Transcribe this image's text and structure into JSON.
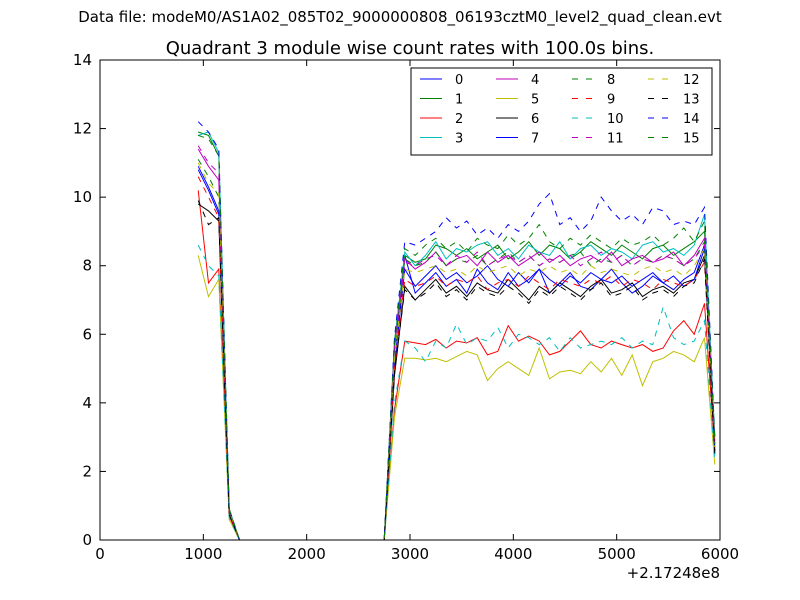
{
  "page_title": "Data file: modeM0/AS1A02_085T02_9000000808_06193cztM0_level2_quad_clean.evt",
  "chart_data": {
    "type": "line",
    "title": "Quadrant 3 module wise count rates with 100.0s bins.",
    "xlabel": "",
    "ylabel": "",
    "x_offset_label": "+2.17248e8",
    "xlim": [
      0,
      6000
    ],
    "ylim": [
      0,
      14
    ],
    "xticks": [
      0,
      1000,
      2000,
      3000,
      4000,
      5000,
      6000
    ],
    "yticks": [
      0,
      2,
      4,
      6,
      8,
      10,
      12,
      14
    ],
    "grid": false,
    "legend": "top-right",
    "x": [
      950,
      1050,
      1150,
      1250,
      1350,
      1450,
      2650,
      2750,
      2850,
      2950,
      3050,
      3150,
      3250,
      3350,
      3450,
      3550,
      3650,
      3750,
      3850,
      3950,
      4050,
      4150,
      4250,
      4350,
      4450,
      4550,
      4650,
      4750,
      4850,
      4950,
      5050,
      5150,
      5250,
      5350,
      5450,
      5550,
      5650,
      5750,
      5850,
      5950
    ],
    "series": [
      {
        "name": "0",
        "color": "#0000ff",
        "dash": "solid",
        "values": [
          10.8,
          10.2,
          9.5,
          0.8,
          0,
          0,
          0,
          0,
          5.0,
          8.3,
          7.2,
          7.5,
          7.8,
          7.4,
          7.6,
          7.2,
          7.9,
          7.5,
          7.3,
          7.8,
          7.4,
          7.6,
          7.9,
          7.2,
          7.5,
          7.8,
          7.4,
          7.3,
          7.6,
          7.9,
          7.5,
          7.2,
          7.4,
          7.7,
          7.5,
          7.3,
          7.6,
          7.8,
          8.6,
          2.5
        ]
      },
      {
        "name": "1",
        "color": "#008000",
        "dash": "solid",
        "values": [
          11.9,
          11.8,
          11.2,
          0.9,
          0,
          0,
          0,
          0,
          5.8,
          8.3,
          8.1,
          8.2,
          8.6,
          8.5,
          8.3,
          8.5,
          8.2,
          8.4,
          8.6,
          8.2,
          8.4,
          8.7,
          8.3,
          8.6,
          8.5,
          8.2,
          8.4,
          8.7,
          8.5,
          8.3,
          8.6,
          8.4,
          8.2,
          8.5,
          8.6,
          8.3,
          8.5,
          8.7,
          9.0,
          3.0
        ]
      },
      {
        "name": "2",
        "color": "#ff0000",
        "dash": "solid",
        "values": [
          10.2,
          7.5,
          7.9,
          0.7,
          0,
          0,
          0,
          0,
          3.8,
          5.8,
          5.75,
          5.7,
          5.85,
          5.6,
          5.8,
          5.75,
          5.9,
          5.4,
          5.5,
          6.25,
          5.8,
          5.95,
          5.8,
          5.4,
          5.5,
          5.8,
          6.1,
          5.7,
          5.6,
          5.8,
          5.7,
          5.6,
          5.7,
          5.5,
          5.6,
          6.1,
          6.4,
          6.0,
          6.9,
          2.6
        ]
      },
      {
        "name": "3",
        "color": "#00bfbf",
        "dash": "solid",
        "values": [
          11.8,
          11.9,
          11.3,
          0.9,
          0,
          0,
          0,
          0,
          5.7,
          8.4,
          8.0,
          8.3,
          8.7,
          8.2,
          8.5,
          8.4,
          8.6,
          8.7,
          8.3,
          8.5,
          8.2,
          8.6,
          8.4,
          8.3,
          8.7,
          8.2,
          8.5,
          8.6,
          8.3,
          8.5,
          8.4,
          8.2,
          8.6,
          8.7,
          8.4,
          8.5,
          8.3,
          8.6,
          9.5,
          2.9
        ]
      },
      {
        "name": "4",
        "color": "#bf00bf",
        "dash": "solid",
        "values": [
          11.4,
          10.9,
          10.5,
          0.85,
          0,
          0,
          0,
          0,
          5.6,
          8.2,
          7.9,
          8.1,
          8.4,
          8.0,
          8.2,
          8.3,
          8.0,
          8.4,
          8.1,
          8.3,
          8.0,
          8.2,
          8.4,
          8.1,
          8.3,
          8.0,
          8.2,
          8.3,
          8.1,
          8.4,
          8.0,
          8.2,
          8.3,
          8.1,
          8.2,
          8.4,
          8.0,
          8.3,
          8.8,
          2.8
        ]
      },
      {
        "name": "5",
        "color": "#bfbf00",
        "dash": "solid",
        "values": [
          8.3,
          7.1,
          7.6,
          0.6,
          0,
          0,
          0,
          0,
          3.6,
          5.3,
          5.3,
          5.25,
          5.3,
          5.2,
          5.35,
          5.5,
          5.4,
          4.65,
          5.0,
          5.2,
          5.0,
          4.8,
          5.6,
          4.7,
          4.9,
          4.95,
          4.85,
          5.2,
          4.9,
          5.3,
          4.8,
          5.4,
          4.5,
          5.2,
          5.3,
          5.5,
          5.4,
          5.2,
          5.9,
          2.2
        ]
      },
      {
        "name": "6",
        "color": "#000000",
        "dash": "solid",
        "values": [
          9.8,
          9.6,
          9.3,
          0.75,
          0,
          0,
          0,
          0,
          4.8,
          7.4,
          7.0,
          7.3,
          7.6,
          7.2,
          7.4,
          7.1,
          7.5,
          7.3,
          7.2,
          7.6,
          7.3,
          7.0,
          7.4,
          7.2,
          7.5,
          7.3,
          7.1,
          7.4,
          7.6,
          7.2,
          7.3,
          7.5,
          7.1,
          7.3,
          7.4,
          7.2,
          7.5,
          7.6,
          8.3,
          2.6
        ]
      },
      {
        "name": "7",
        "color": "#0000ff",
        "dash": "solid",
        "values": [
          10.9,
          10.3,
          9.6,
          0.8,
          0,
          0,
          0,
          0,
          5.1,
          7.9,
          7.4,
          7.7,
          8.0,
          7.6,
          7.8,
          7.5,
          7.7,
          8.0,
          7.6,
          7.4,
          7.8,
          7.5,
          7.9,
          7.6,
          7.4,
          7.7,
          7.5,
          7.8,
          7.6,
          7.5,
          7.7,
          7.4,
          7.6,
          7.8,
          7.5,
          7.7,
          7.4,
          7.6,
          8.5,
          2.7
        ]
      },
      {
        "name": "8",
        "color": "#008000",
        "dash": "dashed",
        "values": [
          11.1,
          10.6,
          10.0,
          0.85,
          0,
          0,
          0,
          0,
          5.4,
          8.2,
          8.0,
          8.1,
          8.4,
          8.0,
          8.2,
          8.1,
          8.3,
          8.0,
          8.2,
          8.4,
          8.1,
          8.3,
          8.0,
          8.2,
          8.1,
          8.3,
          8.4,
          8.0,
          8.2,
          8.1,
          8.3,
          8.0,
          8.2,
          8.1,
          8.3,
          8.2,
          8.0,
          8.2,
          8.7,
          2.8
        ]
      },
      {
        "name": "9",
        "color": "#ff0000",
        "dash": "dashed",
        "values": [
          10.6,
          10.0,
          9.4,
          0.8,
          0,
          0,
          0,
          0,
          5.0,
          7.6,
          7.4,
          7.5,
          7.7,
          7.4,
          7.6,
          7.5,
          7.7,
          7.3,
          7.5,
          7.6,
          7.4,
          7.7,
          7.5,
          7.3,
          7.6,
          7.5,
          7.4,
          7.6,
          7.5,
          7.7,
          7.4,
          7.6,
          7.5,
          7.3,
          7.6,
          7.5,
          7.4,
          7.6,
          8.1,
          2.6
        ]
      },
      {
        "name": "10",
        "color": "#00bfbf",
        "dash": "dashed",
        "values": [
          8.6,
          8.0,
          7.7,
          0.65,
          0,
          0,
          0,
          0,
          4.0,
          5.8,
          5.6,
          5.2,
          5.8,
          5.6,
          6.3,
          5.7,
          5.9,
          5.8,
          6.2,
          5.6,
          6.0,
          5.9,
          5.7,
          5.9,
          5.5,
          5.9,
          5.6,
          5.7,
          5.8,
          5.7,
          5.9,
          5.6,
          5.8,
          5.7,
          6.8,
          5.9,
          5.7,
          5.8,
          6.4,
          2.3
        ]
      },
      {
        "name": "11",
        "color": "#bf00bf",
        "dash": "dashed",
        "values": [
          11.5,
          11.0,
          10.7,
          0.85,
          0,
          0,
          0,
          0,
          5.6,
          8.1,
          8.0,
          8.2,
          8.3,
          8.0,
          8.3,
          8.1,
          8.4,
          8.0,
          8.2,
          8.3,
          8.1,
          8.3,
          8.0,
          8.2,
          8.1,
          8.3,
          8.0,
          8.2,
          8.4,
          8.1,
          8.3,
          8.0,
          8.2,
          8.1,
          8.3,
          8.2,
          8.0,
          8.2,
          8.6,
          2.8
        ]
      },
      {
        "name": "12",
        "color": "#bfbf00",
        "dash": "dashed",
        "values": [
          11.0,
          10.4,
          10.1,
          0.8,
          0,
          0,
          0,
          0,
          5.3,
          7.9,
          7.8,
          7.9,
          8.0,
          7.8,
          7.9,
          7.7,
          8.0,
          7.8,
          7.9,
          8.0,
          7.7,
          7.9,
          7.8,
          8.0,
          7.8,
          7.9,
          7.7,
          8.0,
          7.8,
          7.9,
          7.8,
          7.7,
          7.9,
          8.0,
          7.8,
          7.9,
          7.7,
          8.0,
          8.5,
          2.7
        ]
      },
      {
        "name": "13",
        "color": "#000000",
        "dash": "dashed",
        "values": [
          9.9,
          9.2,
          9.4,
          0.75,
          0,
          0,
          0,
          0,
          4.9,
          7.3,
          7.0,
          7.2,
          7.5,
          7.1,
          7.3,
          7.0,
          7.4,
          7.2,
          7.1,
          7.4,
          7.2,
          6.9,
          7.3,
          7.1,
          7.4,
          7.2,
          7.0,
          7.3,
          7.5,
          7.1,
          7.2,
          7.4,
          7.0,
          7.2,
          7.3,
          7.1,
          7.4,
          7.5,
          8.2,
          2.5
        ]
      },
      {
        "name": "14",
        "color": "#0000ff",
        "dash": "dashed",
        "values": [
          12.2,
          11.9,
          11.4,
          0.9,
          0,
          0,
          0,
          0,
          5.9,
          8.7,
          8.6,
          8.8,
          9.0,
          9.4,
          9.1,
          9.3,
          8.9,
          9.1,
          8.8,
          9.2,
          9.0,
          9.3,
          9.8,
          10.1,
          9.2,
          9.4,
          9.0,
          9.3,
          10.0,
          9.6,
          9.3,
          9.5,
          9.2,
          9.7,
          9.6,
          9.2,
          9.3,
          9.2,
          9.7,
          3.0
        ]
      },
      {
        "name": "15",
        "color": "#008000",
        "dash": "dashed",
        "values": [
          11.8,
          11.7,
          11.2,
          0.9,
          0,
          0,
          0,
          0,
          5.7,
          8.5,
          8.3,
          8.6,
          8.8,
          8.5,
          8.7,
          8.4,
          8.8,
          8.6,
          8.5,
          8.9,
          8.6,
          8.8,
          9.2,
          8.7,
          8.5,
          8.8,
          8.6,
          8.9,
          8.7,
          8.5,
          8.8,
          8.6,
          8.7,
          8.9,
          8.6,
          8.8,
          9.1,
          8.7,
          9.3,
          2.9
        ]
      }
    ]
  }
}
